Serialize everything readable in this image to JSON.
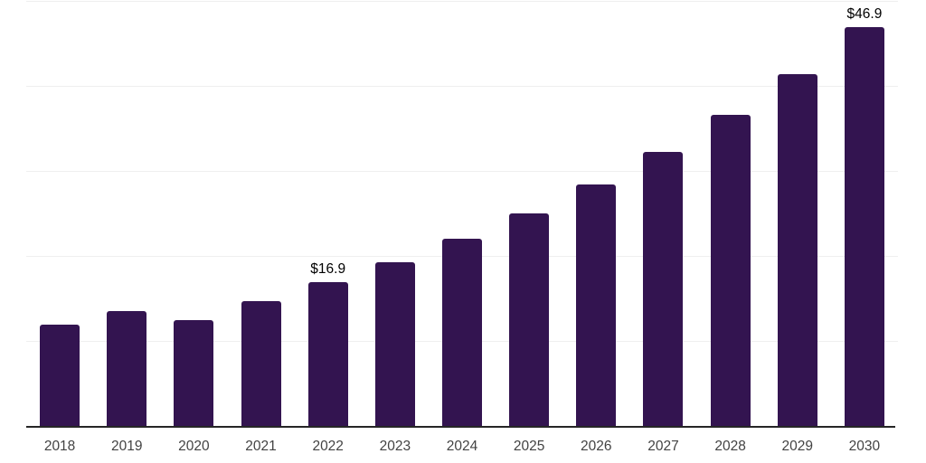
{
  "chart_data": {
    "type": "bar",
    "title": "",
    "xlabel": "",
    "ylabel": "",
    "categories": [
      "2018",
      "2019",
      "2020",
      "2021",
      "2022",
      "2023",
      "2024",
      "2025",
      "2026",
      "2027",
      "2028",
      "2029",
      "2030"
    ],
    "values": [
      11.9,
      13.5,
      12.5,
      14.7,
      16.9,
      19.3,
      22.0,
      25.0,
      28.4,
      32.2,
      36.6,
      41.4,
      46.9
    ],
    "data_labels": [
      "",
      "",
      "",
      "",
      "$16.9",
      "",
      "",
      "",
      "",
      "",
      "",
      "",
      "$46.9"
    ],
    "ylim": [
      0,
      50
    ],
    "grid": true,
    "grid_step": 10,
    "legend": false,
    "colors": {
      "bar": "#331450",
      "gridline": "#efefef",
      "axis_line": "#262626",
      "tick_label": "#434343",
      "data_label": "#000000",
      "background": "#ffffff"
    }
  }
}
